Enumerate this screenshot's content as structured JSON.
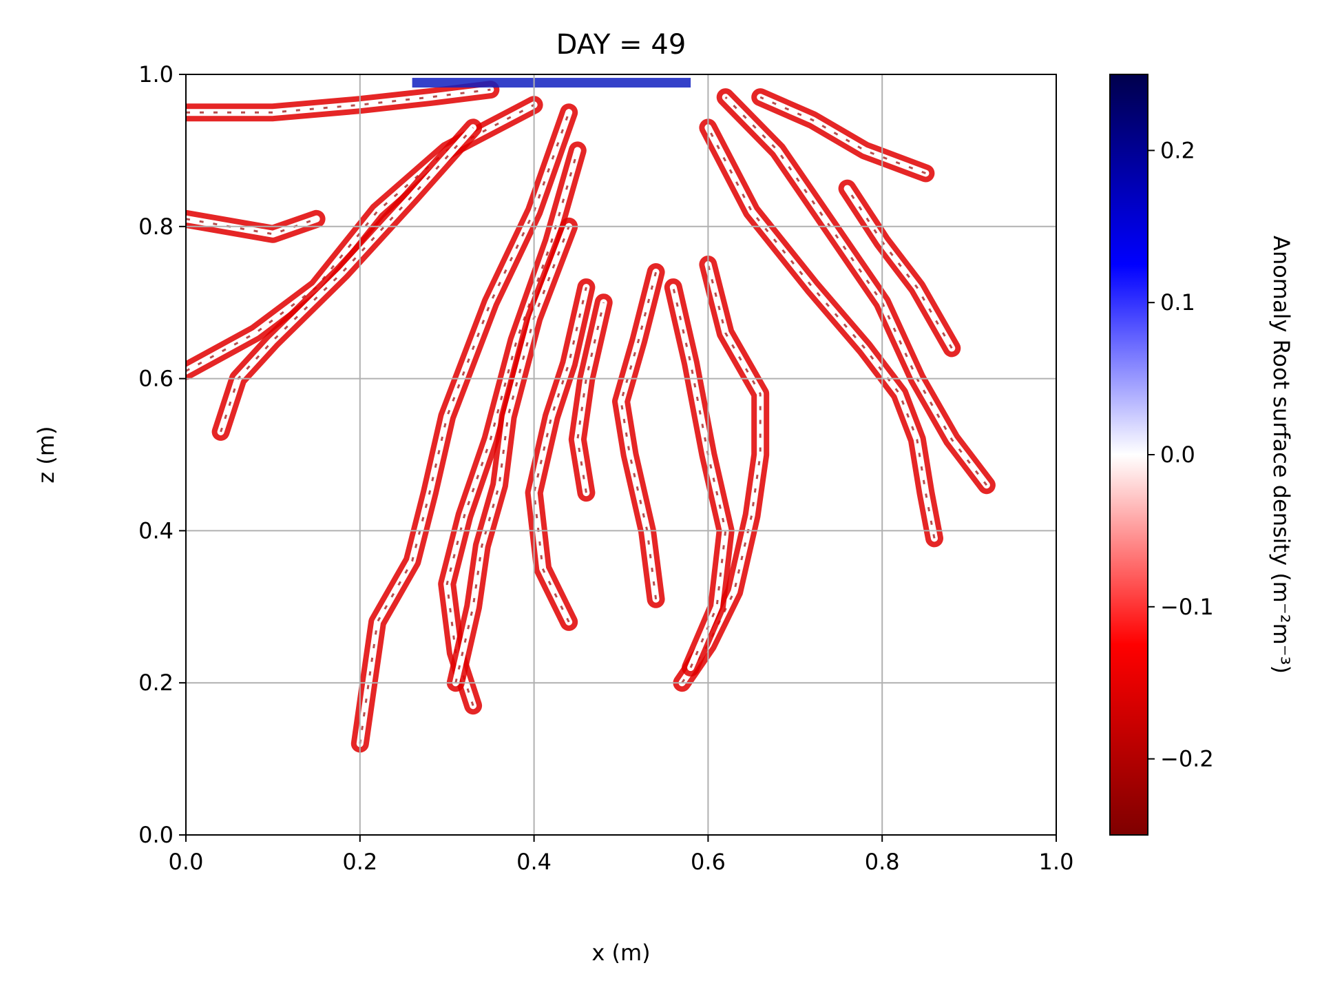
{
  "chart_data": {
    "type": "heatmap",
    "title": "DAY = 49",
    "xlabel": "x (m)",
    "ylabel": "z (m)",
    "xlim": [
      0.0,
      1.0
    ],
    "ylim": [
      0.0,
      1.0
    ],
    "xticks": [
      "0.0",
      "0.2",
      "0.4",
      "0.6",
      "0.8",
      "1.0"
    ],
    "xtick_values": [
      0.0,
      0.2,
      0.4,
      0.6,
      0.8,
      1.0
    ],
    "yticks": [
      "0.0",
      "0.2",
      "0.4",
      "0.6",
      "0.8",
      "1.0"
    ],
    "ytick_values": [
      0.0,
      0.2,
      0.4,
      0.6,
      0.8,
      1.0
    ],
    "grid": true,
    "colorbar": {
      "label": "Anomaly Root surface density (m⁻²m⁻³)",
      "colormap": "seismic_r",
      "range": [
        -0.25,
        0.25
      ],
      "ticks": [
        "−0.2",
        "−0.1",
        "0.0",
        "0.1",
        "0.2"
      ],
      "tick_values": [
        -0.2,
        -0.1,
        0.0,
        0.1,
        0.2
      ],
      "colors": [
        "#7f0000",
        "#ff0000",
        "#ffffff",
        "#0000ff",
        "#00004c"
      ]
    },
    "field_description": "White background (~0) with root-shaped channels of negative anomaly (red, up to -0.25) and sparse positive (blue) specks; strongest positive band along z≈1.0 near x 0.3-0.6.",
    "branches": [
      {
        "pts": [
          [
            0.0,
            0.95
          ],
          [
            0.1,
            0.95
          ],
          [
            0.2,
            0.96
          ],
          [
            0.28,
            0.97
          ],
          [
            0.35,
            0.98
          ]
        ]
      },
      {
        "pts": [
          [
            0.0,
            0.81
          ],
          [
            0.05,
            0.8
          ],
          [
            0.1,
            0.79
          ],
          [
            0.15,
            0.81
          ]
        ]
      },
      {
        "pts": [
          [
            0.0,
            0.61
          ],
          [
            0.08,
            0.66
          ],
          [
            0.15,
            0.72
          ],
          [
            0.22,
            0.82
          ],
          [
            0.3,
            0.9
          ],
          [
            0.4,
            0.96
          ]
        ]
      },
      {
        "pts": [
          [
            0.04,
            0.53
          ],
          [
            0.06,
            0.6
          ],
          [
            0.1,
            0.65
          ],
          [
            0.18,
            0.74
          ],
          [
            0.26,
            0.84
          ],
          [
            0.33,
            0.93
          ]
        ]
      },
      {
        "pts": [
          [
            0.2,
            0.12
          ],
          [
            0.21,
            0.2
          ],
          [
            0.22,
            0.28
          ],
          [
            0.26,
            0.36
          ],
          [
            0.28,
            0.45
          ],
          [
            0.3,
            0.55
          ],
          [
            0.35,
            0.7
          ],
          [
            0.4,
            0.82
          ],
          [
            0.44,
            0.95
          ]
        ]
      },
      {
        "pts": [
          [
            0.33,
            0.17
          ],
          [
            0.31,
            0.24
          ],
          [
            0.3,
            0.33
          ],
          [
            0.32,
            0.42
          ],
          [
            0.35,
            0.52
          ],
          [
            0.38,
            0.65
          ],
          [
            0.42,
            0.78
          ],
          [
            0.45,
            0.9
          ]
        ]
      },
      {
        "pts": [
          [
            0.31,
            0.2
          ],
          [
            0.33,
            0.3
          ],
          [
            0.34,
            0.38
          ],
          [
            0.36,
            0.46
          ],
          [
            0.37,
            0.55
          ],
          [
            0.4,
            0.68
          ],
          [
            0.44,
            0.8
          ]
        ]
      },
      {
        "pts": [
          [
            0.44,
            0.28
          ],
          [
            0.41,
            0.35
          ],
          [
            0.4,
            0.45
          ],
          [
            0.42,
            0.55
          ],
          [
            0.44,
            0.62
          ],
          [
            0.46,
            0.72
          ]
        ]
      },
      {
        "pts": [
          [
            0.46,
            0.45
          ],
          [
            0.45,
            0.52
          ],
          [
            0.46,
            0.6
          ],
          [
            0.48,
            0.7
          ]
        ]
      },
      {
        "pts": [
          [
            0.54,
            0.31
          ],
          [
            0.53,
            0.4
          ],
          [
            0.51,
            0.5
          ],
          [
            0.5,
            0.57
          ],
          [
            0.52,
            0.65
          ],
          [
            0.54,
            0.74
          ]
        ]
      },
      {
        "pts": [
          [
            0.57,
            0.2
          ],
          [
            0.6,
            0.25
          ],
          [
            0.63,
            0.32
          ],
          [
            0.65,
            0.42
          ],
          [
            0.66,
            0.5
          ],
          [
            0.66,
            0.58
          ],
          [
            0.62,
            0.66
          ],
          [
            0.6,
            0.75
          ]
        ]
      },
      {
        "pts": [
          [
            0.58,
            0.22
          ],
          [
            0.61,
            0.3
          ],
          [
            0.62,
            0.4
          ],
          [
            0.6,
            0.5
          ],
          [
            0.58,
            0.62
          ],
          [
            0.56,
            0.72
          ]
        ]
      },
      {
        "pts": [
          [
            0.86,
            0.39
          ],
          [
            0.85,
            0.45
          ],
          [
            0.84,
            0.52
          ],
          [
            0.82,
            0.58
          ],
          [
            0.78,
            0.64
          ],
          [
            0.72,
            0.72
          ],
          [
            0.65,
            0.82
          ],
          [
            0.6,
            0.93
          ]
        ]
      },
      {
        "pts": [
          [
            0.92,
            0.46
          ],
          [
            0.88,
            0.52
          ],
          [
            0.84,
            0.6
          ],
          [
            0.8,
            0.7
          ],
          [
            0.74,
            0.8
          ],
          [
            0.68,
            0.9
          ],
          [
            0.62,
            0.97
          ]
        ]
      },
      {
        "pts": [
          [
            0.85,
            0.87
          ],
          [
            0.78,
            0.9
          ],
          [
            0.72,
            0.94
          ],
          [
            0.66,
            0.97
          ]
        ]
      },
      {
        "pts": [
          [
            0.88,
            0.64
          ],
          [
            0.84,
            0.72
          ],
          [
            0.8,
            0.78
          ],
          [
            0.76,
            0.85
          ]
        ]
      }
    ],
    "top_band": [
      {
        "x0": 0.26,
        "x1": 0.58,
        "z": 0.99,
        "sign": "positive"
      }
    ]
  }
}
